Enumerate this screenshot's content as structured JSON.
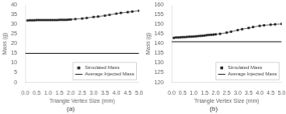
{
  "chart_data": [
    {
      "type": "line",
      "title": "(a)",
      "xlabel": "Triangle Vertex Size (mm)",
      "ylabel": "Mass (g)",
      "x": [
        0.1,
        0.2,
        0.3,
        0.4,
        0.5,
        0.6,
        0.7,
        0.8,
        0.9,
        1.0,
        1.1,
        1.2,
        1.3,
        1.4,
        1.5,
        1.6,
        1.7,
        1.8,
        1.9,
        2.0,
        2.2,
        2.5,
        2.7,
        3.0,
        3.2,
        3.5,
        3.7,
        4.0,
        4.2,
        4.5,
        4.7,
        5.0
      ],
      "series": [
        {
          "name": "Simulated Mass",
          "color": "#222222",
          "marker": "square",
          "line_style": "solid",
          "values": [
            32.0,
            32.1,
            32.1,
            32.1,
            32.2,
            32.2,
            32.2,
            32.2,
            32.2,
            32.2,
            32.2,
            32.2,
            32.2,
            32.2,
            32.3,
            32.3,
            32.3,
            32.3,
            32.4,
            32.5,
            32.7,
            33.0,
            33.3,
            33.8,
            34.0,
            34.5,
            34.9,
            35.5,
            35.9,
            36.3,
            36.6,
            37.0
          ]
        },
        {
          "name": "Average Injected Mass",
          "type": "hline",
          "color": "#111111",
          "line_style": "solid",
          "value": 15.0
        }
      ],
      "xlim": [
        0.0,
        5.0
      ],
      "xticks": [
        {
          "value": 0.0,
          "label": "0.0"
        },
        {
          "value": 0.5,
          "label": "0.5"
        },
        {
          "value": 1.0,
          "label": "1.0"
        },
        {
          "value": 1.5,
          "label": "1.5"
        },
        {
          "value": 2.0,
          "label": "2.0"
        },
        {
          "value": 2.5,
          "label": "2.5"
        },
        {
          "value": 3.0,
          "label": "3.0"
        },
        {
          "value": 3.5,
          "label": "3.5"
        },
        {
          "value": 4.0,
          "label": "4.0"
        },
        {
          "value": 4.5,
          "label": "4.5"
        },
        {
          "value": 5.0,
          "label": "5.0"
        }
      ],
      "ylim": [
        0,
        40
      ],
      "yticks": [
        0,
        5,
        10,
        15,
        20,
        25,
        30,
        35,
        40
      ],
      "legend": "lower right",
      "grid": false
    },
    {
      "type": "line",
      "title": "(b)",
      "xlabel": "Triangle Vertex Size (mm)",
      "ylabel": "Mass (g)",
      "x": [
        0.1,
        0.2,
        0.3,
        0.4,
        0.5,
        0.6,
        0.7,
        0.8,
        0.9,
        1.0,
        1.1,
        1.2,
        1.3,
        1.4,
        1.5,
        1.6,
        1.7,
        1.8,
        1.9,
        2.0,
        2.2,
        2.5,
        2.7,
        3.0,
        3.2,
        3.5,
        3.7,
        4.0,
        4.2,
        4.5,
        4.7,
        5.0
      ],
      "series": [
        {
          "name": "Simulated Mass",
          "color": "#222222",
          "marker": "square",
          "line_style": "solid",
          "values": [
            143.0,
            143.2,
            143.2,
            143.3,
            143.4,
            143.4,
            143.5,
            143.6,
            143.6,
            143.7,
            143.8,
            143.9,
            144.0,
            144.1,
            144.2,
            144.4,
            144.5,
            144.6,
            144.7,
            144.8,
            145.1,
            145.7,
            146.2,
            147.0,
            147.5,
            148.1,
            148.6,
            149.2,
            149.5,
            149.8,
            150.0,
            150.2
          ]
        },
        {
          "name": "Average Injected Mass",
          "type": "hline",
          "color": "#111111",
          "line_style": "solid",
          "value": 141.0
        }
      ],
      "xlim": [
        0.0,
        5.0
      ],
      "xticks": [
        {
          "value": 0.0,
          "label": "0.0"
        },
        {
          "value": 0.5,
          "label": "0.5"
        },
        {
          "value": 1.0,
          "label": "1.0"
        },
        {
          "value": 1.5,
          "label": "1.5"
        },
        {
          "value": 2.0,
          "label": "2.0"
        },
        {
          "value": 2.5,
          "label": "2.5"
        },
        {
          "value": 3.0,
          "label": "3.0"
        },
        {
          "value": 3.5,
          "label": "3.5"
        },
        {
          "value": 4.0,
          "label": "4.0"
        },
        {
          "value": 4.5,
          "label": "4.5"
        },
        {
          "value": 5.0,
          "label": "5.0"
        }
      ],
      "ylim": [
        120,
        160
      ],
      "yticks": [
        120,
        125,
        130,
        135,
        140,
        145,
        150,
        155,
        160
      ],
      "legend": "lower right",
      "grid": false
    }
  ]
}
